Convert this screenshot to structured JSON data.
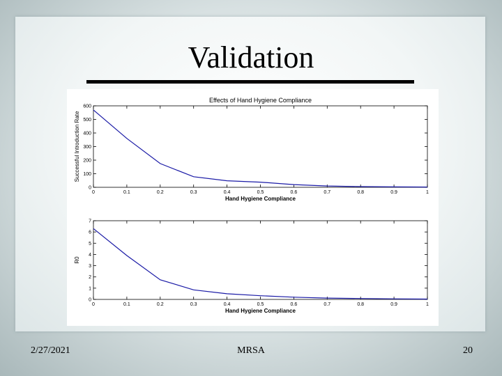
{
  "slide": {
    "title": "Validation",
    "footer_date": "2/27/2021",
    "footer_center": "MRSA",
    "page_number": "20"
  },
  "colors": {
    "line": "#1a1aa6"
  },
  "chart_data": [
    {
      "type": "line",
      "title": "Effects of Hand Hygiene Compliance",
      "xlabel": "Hand Hygiene Compliance",
      "ylabel": "Successful Introduction Rate",
      "xlim": [
        0,
        1
      ],
      "ylim": [
        0,
        600
      ],
      "x_ticks": [
        0,
        0.1,
        0.2,
        0.3,
        0.4,
        0.5,
        0.6,
        0.7,
        0.8,
        0.9,
        1
      ],
      "x_tick_labels": [
        "0",
        "0.1",
        "0.2",
        "0.3",
        "0.4",
        "0.5",
        "0.6",
        "0.7",
        "0.8",
        "0.9",
        "1"
      ],
      "y_ticks": [
        0,
        100,
        200,
        300,
        400,
        500,
        600
      ],
      "y_tick_labels": [
        "0",
        "100",
        "200",
        "300",
        "400",
        "500",
        "600"
      ],
      "grid": false,
      "series": [
        {
          "x": [
            0,
            0.1,
            0.2,
            0.3,
            0.4,
            0.5,
            0.6,
            0.7,
            0.8,
            0.9,
            1
          ],
          "y": [
            570,
            360,
            175,
            78,
            48,
            38,
            20,
            10,
            5,
            3,
            2
          ]
        }
      ]
    },
    {
      "type": "line",
      "title": "",
      "xlabel": "Hand Hygiene Compliance",
      "ylabel": "R0",
      "xlim": [
        0,
        1
      ],
      "ylim": [
        0,
        7
      ],
      "x_ticks": [
        0,
        0.1,
        0.2,
        0.3,
        0.4,
        0.5,
        0.6,
        0.7,
        0.8,
        0.9,
        1
      ],
      "x_tick_labels": [
        "0",
        "0.1",
        "0.2",
        "0.3",
        "0.4",
        "0.5",
        "0.6",
        "0.7",
        "0.8",
        "0.9",
        "1"
      ],
      "y_ticks": [
        0,
        1,
        2,
        3,
        4,
        5,
        6,
        7
      ],
      "y_tick_labels": [
        "0",
        "1",
        "2",
        "3",
        "4",
        "5",
        "6",
        "7"
      ],
      "grid": false,
      "series": [
        {
          "x": [
            0,
            0.1,
            0.2,
            0.3,
            0.4,
            0.5,
            0.6,
            0.7,
            0.8,
            0.9,
            1
          ],
          "y": [
            6.3,
            3.9,
            1.75,
            0.85,
            0.5,
            0.33,
            0.2,
            0.12,
            0.08,
            0.05,
            0.03
          ]
        }
      ]
    }
  ]
}
